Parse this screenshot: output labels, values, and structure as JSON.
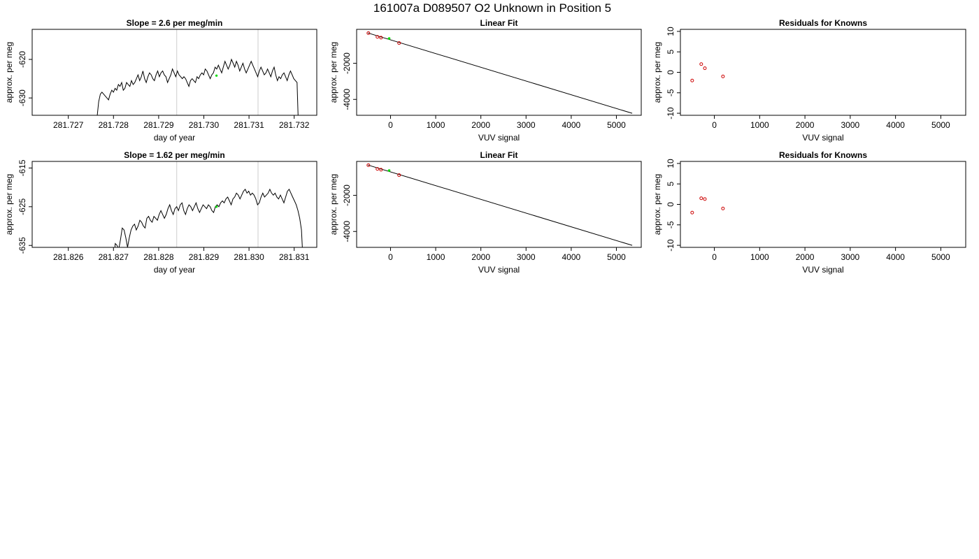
{
  "page_title": "161007a      D089507   O2 Unknown in Position  5",
  "colors": {
    "trace": "#000000",
    "vline": "#cccccc",
    "known": "#cc0000",
    "unknown": "#00dd00",
    "frame": "#000000"
  },
  "chart_data": [
    {
      "id": "slope-1",
      "type": "line",
      "title": "Slope =  2.6  per meg/min",
      "xlabel": "day of year",
      "ylabel": "approx. per meg",
      "xlim": [
        281.7262,
        281.7325
      ],
      "ylim": [
        -634.5,
        -612.2
      ],
      "xticks": [
        281.727,
        281.728,
        281.729,
        281.73,
        281.731,
        281.732
      ],
      "xtick_labels": [
        "281.727",
        "281.728",
        "281.729",
        "281.730",
        "281.731",
        "281.732"
      ],
      "yticks": [
        -620,
        -630
      ],
      "ytick_labels": [
        "-620",
        "-630"
      ],
      "vlines": [
        281.7294,
        281.7312
      ],
      "trace_x_start": 281.7276,
      "trace_x_end": 281.7321,
      "trace_y": [
        -640,
        -635,
        -631,
        -629,
        -628.5,
        -629,
        -629.5,
        -630,
        -630.5,
        -629,
        -628,
        -628.5,
        -627.5,
        -628,
        -626.5,
        -627,
        -626,
        -628,
        -627.5,
        -626,
        -626.5,
        -627,
        -625.5,
        -626.5,
        -626,
        -625,
        -624,
        -625.5,
        -624.5,
        -623,
        -625,
        -626,
        -624.5,
        -623.5,
        -624,
        -625,
        -625.5,
        -624,
        -623,
        -624.5,
        -623.5,
        -623,
        -624,
        -624.5,
        -626,
        -625,
        -624,
        -622.5,
        -623.5,
        -624.5,
        -623,
        -624,
        -624.5,
        -625,
        -624.5,
        -625,
        -626,
        -627,
        -625.5,
        -625,
        -625.5,
        -626,
        -624.5,
        -625,
        -624,
        -623.5,
        -624,
        -622.5,
        -623,
        -624,
        -625,
        -624,
        -623.5,
        -622,
        -622.5,
        -621.5,
        -622.5,
        -623.5,
        -622,
        -620.5,
        -621.5,
        -622.5,
        -621.5,
        -620,
        -621,
        -622,
        -620.5,
        -621.5,
        -623,
        -622,
        -621,
        -622.5,
        -623.5,
        -622.5,
        -621.5,
        -620.5,
        -621.5,
        -622.5,
        -623.5,
        -624.5,
        -623,
        -622,
        -623,
        -624,
        -623.5,
        -622.5,
        -623.5,
        -624.5,
        -623,
        -622,
        -624,
        -625.5,
        -624.5,
        -625,
        -624,
        -623.5,
        -624.5,
        -625.5,
        -624,
        -623,
        -624,
        -625,
        -625.5,
        -626,
        -640
      ],
      "unknown_point": {
        "x": 281.73028,
        "y": -624.2
      }
    },
    {
      "id": "fit-1",
      "type": "scatter",
      "title": "Linear Fit",
      "xlabel": "VUV signal",
      "ylabel": "approx. per meg",
      "xlim": [
        -750,
        5550
      ],
      "ylim": [
        -4880,
        -120
      ],
      "xticks": [
        0,
        1000,
        2000,
        3000,
        4000,
        5000
      ],
      "xtick_labels": [
        "0",
        "1000",
        "2000",
        "3000",
        "4000",
        "5000"
      ],
      "yticks": [
        -2000,
        -4000
      ],
      "ytick_labels": [
        "-2000",
        "-4000"
      ],
      "fit_line": {
        "x": [
          -500,
          5350
        ],
        "y": [
          -320,
          -4770
        ]
      },
      "knowns": {
        "x": [
          -490,
          -290,
          -210,
          190
        ],
        "y": [
          -327,
          -535,
          -580,
          -880
        ]
      },
      "unknown": {
        "x": -30,
        "y": -625
      }
    },
    {
      "id": "resid-1",
      "type": "scatter",
      "title": "Residuals for Knowns",
      "xlabel": "VUV signal",
      "ylabel": "approx. per meg",
      "xlim": [
        -750,
        5550
      ],
      "ylim": [
        -10.5,
        10.5
      ],
      "xticks": [
        0,
        1000,
        2000,
        3000,
        4000,
        5000
      ],
      "xtick_labels": [
        "0",
        "1000",
        "2000",
        "3000",
        "4000",
        "5000"
      ],
      "yticks": [
        10,
        5,
        0,
        -5,
        -10
      ],
      "ytick_labels": [
        "10",
        "5",
        "0",
        "-5",
        "-10"
      ],
      "knowns": {
        "x": [
          -490,
          -290,
          -210,
          190
        ],
        "y": [
          -2,
          2,
          1,
          -1
        ]
      }
    },
    {
      "id": "slope-2",
      "type": "line",
      "title": "Slope =  1.62  per meg/min",
      "xlabel": "day of year",
      "ylabel": "approx. per meg",
      "xlim": [
        281.8252,
        281.8315
      ],
      "ylim": [
        -635.5,
        -613.3
      ],
      "xticks": [
        281.826,
        281.827,
        281.828,
        281.829,
        281.83,
        281.831
      ],
      "xtick_labels": [
        "281.826",
        "281.827",
        "281.828",
        "281.829",
        "281.830",
        "281.831"
      ],
      "yticks": [
        -615,
        -625,
        -635
      ],
      "ytick_labels": [
        "-615",
        "-625",
        "-635"
      ],
      "vlines": [
        281.8284,
        281.8302
      ],
      "trace_x_start": 281.827,
      "trace_x_end": 281.8312,
      "trace_y": [
        -640,
        -634.5,
        -635,
        -636,
        -633.5,
        -630.5,
        -631,
        -633,
        -635.5,
        -633,
        -631,
        -630,
        -629.5,
        -631,
        -630,
        -628.5,
        -629,
        -630,
        -630.5,
        -628,
        -627.5,
        -628.5,
        -629,
        -627.5,
        -628,
        -628.5,
        -627,
        -626,
        -627,
        -628,
        -627,
        -625.5,
        -624.5,
        -626,
        -627,
        -625.5,
        -625,
        -626,
        -624.5,
        -624,
        -626,
        -627,
        -625.5,
        -624.5,
        -625,
        -626,
        -625,
        -624,
        -625.5,
        -626.5,
        -625.5,
        -624.5,
        -625,
        -625.5,
        -624.5,
        -625,
        -626,
        -626.5,
        -625,
        -624.5,
        -625,
        -624,
        -623.5,
        -624,
        -623,
        -622.5,
        -623.5,
        -624.5,
        -623,
        -622.5,
        -621.5,
        -622,
        -623,
        -622,
        -621,
        -620.5,
        -621.5,
        -621,
        -622,
        -621.5,
        -622,
        -623,
        -624.5,
        -624,
        -622.5,
        -621.5,
        -622.5,
        -622,
        -621.5,
        -620.5,
        -621.5,
        -622,
        -621.5,
        -622.5,
        -623,
        -622,
        -623,
        -624,
        -622.5,
        -621,
        -620.5,
        -621.5,
        -622.5,
        -623.5,
        -624.5,
        -626,
        -628,
        -631,
        -640
      ],
      "unknown_point": {
        "x": 281.82928,
        "y": -625
      }
    },
    {
      "id": "fit-2",
      "type": "scatter",
      "title": "Linear Fit",
      "xlabel": "VUV signal",
      "ylabel": "approx. per meg",
      "xlim": [
        -750,
        5550
      ],
      "ylim": [
        -4880,
        -120
      ],
      "xticks": [
        0,
        1000,
        2000,
        3000,
        4000,
        5000
      ],
      "xtick_labels": [
        "0",
        "1000",
        "2000",
        "3000",
        "4000",
        "5000"
      ],
      "yticks": [
        -2000,
        -4000
      ],
      "ytick_labels": [
        "-2000",
        "-4000"
      ],
      "fit_line": {
        "x": [
          -500,
          5350
        ],
        "y": [
          -320,
          -4770
        ]
      },
      "knowns": {
        "x": [
          -490,
          -290,
          -210,
          190
        ],
        "y": [
          -327,
          -535,
          -580,
          -880
        ]
      },
      "unknown": {
        "x": -30,
        "y": -625
      }
    },
    {
      "id": "resid-2",
      "type": "scatter",
      "title": "Residuals for Knowns",
      "xlabel": "VUV signal",
      "ylabel": "approx. per meg",
      "xlim": [
        -750,
        5550
      ],
      "ylim": [
        -10.5,
        10.5
      ],
      "xticks": [
        0,
        1000,
        2000,
        3000,
        4000,
        5000
      ],
      "xtick_labels": [
        "0",
        "1000",
        "2000",
        "3000",
        "4000",
        "5000"
      ],
      "yticks": [
        10,
        5,
        0,
        -5,
        -10
      ],
      "ytick_labels": [
        "10",
        "5",
        "0",
        "-5",
        "-10"
      ],
      "knowns": {
        "x": [
          -490,
          -290,
          -210,
          190
        ],
        "y": [
          -2,
          1.5,
          1.3,
          -1
        ]
      }
    }
  ]
}
